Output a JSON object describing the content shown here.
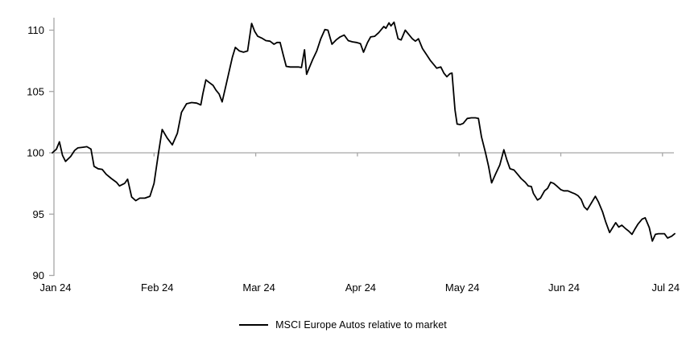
{
  "legend": {
    "label": "MSCI Europe Autos relative to market"
  },
  "colors": {
    "line": "#000000",
    "axis": "#a6a6a6",
    "text": "#000000",
    "background": "#ffffff"
  },
  "chart_data": {
    "type": "line",
    "title": "",
    "xlabel": "",
    "ylabel": "",
    "grid": "horizontal axis line drawn at value 100 (index base line)",
    "legend_position": "bottom-center",
    "x_axis": {
      "tick_labels": [
        "Jan 24",
        "Feb 24",
        "Mar 24",
        "Apr 24",
        "May 24",
        "Jun 24",
        "Jul 24"
      ],
      "tick_positions_months": [
        0,
        1,
        2,
        3,
        4,
        5,
        6
      ],
      "crosses_at": 100
    },
    "y_axis": {
      "min": 90,
      "max": 111,
      "ticks": [
        90,
        95,
        100,
        105,
        110
      ]
    },
    "series": [
      {
        "name": "MSCI Europe Autos relative to market",
        "color": "#000000",
        "points": [
          [
            0.0,
            100.0
          ],
          [
            0.04,
            100.3
          ],
          [
            0.07,
            100.9
          ],
          [
            0.1,
            99.8
          ],
          [
            0.13,
            99.3
          ],
          [
            0.18,
            99.7
          ],
          [
            0.22,
            100.2
          ],
          [
            0.25,
            100.4
          ],
          [
            0.3,
            100.45
          ],
          [
            0.34,
            100.5
          ],
          [
            0.38,
            100.3
          ],
          [
            0.41,
            98.9
          ],
          [
            0.45,
            98.7
          ],
          [
            0.49,
            98.65
          ],
          [
            0.53,
            98.25
          ],
          [
            0.58,
            97.9
          ],
          [
            0.63,
            97.6
          ],
          [
            0.66,
            97.3
          ],
          [
            0.71,
            97.5
          ],
          [
            0.74,
            97.85
          ],
          [
            0.78,
            96.4
          ],
          [
            0.82,
            96.1
          ],
          [
            0.86,
            96.3
          ],
          [
            0.91,
            96.3
          ],
          [
            0.96,
            96.45
          ],
          [
            1.0,
            97.5
          ],
          [
            1.04,
            99.8
          ],
          [
            1.08,
            101.9
          ],
          [
            1.13,
            101.2
          ],
          [
            1.18,
            100.65
          ],
          [
            1.23,
            101.6
          ],
          [
            1.27,
            103.3
          ],
          [
            1.32,
            104.0
          ],
          [
            1.37,
            104.1
          ],
          [
            1.42,
            104.05
          ],
          [
            1.46,
            103.9
          ],
          [
            1.48,
            104.8
          ],
          [
            1.51,
            105.95
          ],
          [
            1.54,
            105.75
          ],
          [
            1.58,
            105.5
          ],
          [
            1.61,
            105.1
          ],
          [
            1.64,
            104.8
          ],
          [
            1.67,
            104.15
          ],
          [
            1.71,
            105.6
          ],
          [
            1.74,
            106.7
          ],
          [
            1.77,
            107.8
          ],
          [
            1.8,
            108.6
          ],
          [
            1.84,
            108.3
          ],
          [
            1.88,
            108.2
          ],
          [
            1.92,
            108.3
          ],
          [
            1.96,
            110.55
          ],
          [
            1.99,
            109.9
          ],
          [
            2.02,
            109.5
          ],
          [
            2.06,
            109.35
          ],
          [
            2.1,
            109.15
          ],
          [
            2.14,
            109.1
          ],
          [
            2.18,
            108.85
          ],
          [
            2.21,
            109.0
          ],
          [
            2.24,
            109.0
          ],
          [
            2.27,
            108.0
          ],
          [
            2.3,
            107.05
          ],
          [
            2.34,
            107.0
          ],
          [
            2.38,
            107.0
          ],
          [
            2.42,
            107.0
          ],
          [
            2.45,
            106.95
          ],
          [
            2.48,
            108.4
          ],
          [
            2.5,
            106.4
          ],
          [
            2.53,
            107.0
          ],
          [
            2.56,
            107.6
          ],
          [
            2.6,
            108.3
          ],
          [
            2.64,
            109.3
          ],
          [
            2.68,
            110.05
          ],
          [
            2.71,
            110.0
          ],
          [
            2.75,
            108.85
          ],
          [
            2.79,
            109.2
          ],
          [
            2.83,
            109.45
          ],
          [
            2.87,
            109.6
          ],
          [
            2.91,
            109.15
          ],
          [
            2.95,
            109.05
          ],
          [
            2.99,
            109.0
          ],
          [
            3.03,
            108.9
          ],
          [
            3.06,
            108.2
          ],
          [
            3.1,
            109.0
          ],
          [
            3.13,
            109.45
          ],
          [
            3.17,
            109.5
          ],
          [
            3.21,
            109.8
          ],
          [
            3.26,
            110.3
          ],
          [
            3.28,
            110.15
          ],
          [
            3.31,
            110.6
          ],
          [
            3.33,
            110.35
          ],
          [
            3.36,
            110.65
          ],
          [
            3.4,
            109.3
          ],
          [
            3.43,
            109.2
          ],
          [
            3.47,
            110.0
          ],
          [
            3.51,
            109.6
          ],
          [
            3.54,
            109.3
          ],
          [
            3.57,
            109.1
          ],
          [
            3.6,
            109.3
          ],
          [
            3.64,
            108.5
          ],
          [
            3.68,
            108.0
          ],
          [
            3.72,
            107.5
          ],
          [
            3.76,
            107.1
          ],
          [
            3.78,
            106.9
          ],
          [
            3.82,
            107.0
          ],
          [
            3.85,
            106.5
          ],
          [
            3.88,
            106.2
          ],
          [
            3.91,
            106.45
          ],
          [
            3.93,
            106.5
          ],
          [
            3.96,
            103.5
          ],
          [
            3.98,
            102.35
          ],
          [
            4.01,
            102.3
          ],
          [
            4.04,
            102.4
          ],
          [
            4.08,
            102.8
          ],
          [
            4.12,
            102.85
          ],
          [
            4.16,
            102.85
          ],
          [
            4.19,
            102.8
          ],
          [
            4.22,
            101.3
          ],
          [
            4.26,
            100.0
          ],
          [
            4.29,
            98.9
          ],
          [
            4.32,
            97.55
          ],
          [
            4.36,
            98.3
          ],
          [
            4.4,
            99.0
          ],
          [
            4.44,
            100.25
          ],
          [
            4.47,
            99.4
          ],
          [
            4.5,
            98.7
          ],
          [
            4.54,
            98.6
          ],
          [
            4.58,
            98.2
          ],
          [
            4.61,
            97.9
          ],
          [
            4.65,
            97.6
          ],
          [
            4.68,
            97.3
          ],
          [
            4.71,
            97.25
          ],
          [
            4.73,
            96.7
          ],
          [
            4.77,
            96.15
          ],
          [
            4.8,
            96.3
          ],
          [
            4.84,
            96.9
          ],
          [
            4.87,
            97.1
          ],
          [
            4.9,
            97.6
          ],
          [
            4.93,
            97.5
          ],
          [
            4.96,
            97.3
          ],
          [
            5.0,
            97.0
          ],
          [
            5.03,
            96.9
          ],
          [
            5.07,
            96.9
          ],
          [
            5.11,
            96.75
          ],
          [
            5.14,
            96.65
          ],
          [
            5.17,
            96.5
          ],
          [
            5.2,
            96.2
          ],
          [
            5.23,
            95.6
          ],
          [
            5.26,
            95.35
          ],
          [
            5.3,
            95.9
          ],
          [
            5.34,
            96.45
          ],
          [
            5.37,
            96.0
          ],
          [
            5.41,
            95.2
          ],
          [
            5.44,
            94.4
          ],
          [
            5.48,
            93.5
          ],
          [
            5.51,
            93.9
          ],
          [
            5.54,
            94.3
          ],
          [
            5.57,
            93.95
          ],
          [
            5.6,
            94.1
          ],
          [
            5.64,
            93.8
          ],
          [
            5.67,
            93.6
          ],
          [
            5.7,
            93.35
          ],
          [
            5.73,
            93.8
          ],
          [
            5.76,
            94.2
          ],
          [
            5.8,
            94.6
          ],
          [
            5.83,
            94.7
          ],
          [
            5.87,
            93.9
          ],
          [
            5.9,
            92.8
          ],
          [
            5.93,
            93.35
          ],
          [
            5.96,
            93.4
          ],
          [
            5.99,
            93.4
          ],
          [
            6.02,
            93.4
          ],
          [
            6.05,
            93.05
          ],
          [
            6.09,
            93.2
          ],
          [
            6.12,
            93.4
          ]
        ]
      }
    ]
  }
}
